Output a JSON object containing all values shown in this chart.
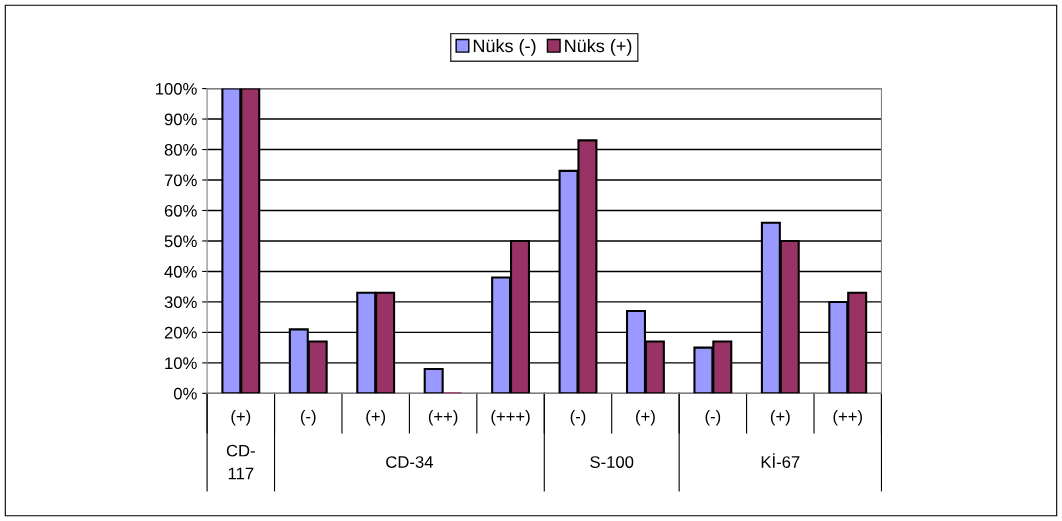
{
  "chart_data": {
    "type": "bar",
    "categories": [
      "(+)",
      "(-)",
      "(+)",
      "(++)",
      "(+++)",
      "(-)",
      "(+)",
      "(-)",
      "(+)",
      "(++)"
    ],
    "series": [
      {
        "name": "Nüks (-)",
        "color": "#9999ff",
        "values": [
          100,
          21,
          33,
          8,
          38,
          73,
          27,
          15,
          56,
          30
        ]
      },
      {
        "name": "Nüks (+)",
        "color": "#993366",
        "values": [
          100,
          17,
          33,
          0,
          50,
          83,
          17,
          17,
          50,
          33
        ]
      }
    ],
    "annotations": [
      "CD-\n117",
      "CD-34",
      "S-100",
      "Kİ-67"
    ],
    "ylim": [
      0,
      100
    ],
    "yticks": [
      {
        "value": 0,
        "label": "0%"
      },
      {
        "value": 10,
        "label": "10%"
      },
      {
        "value": 20,
        "label": "20%"
      },
      {
        "value": 30,
        "label": "30%"
      },
      {
        "value": 40,
        "label": "40%"
      },
      {
        "value": 50,
        "label": "50%"
      },
      {
        "value": 60,
        "label": "60%"
      },
      {
        "value": 70,
        "label": "70%"
      },
      {
        "value": 80,
        "label": "80%"
      },
      {
        "value": 90,
        "label": "90%"
      },
      {
        "value": 100,
        "label": "100%"
      }
    ],
    "grid": "y",
    "legend": "top"
  }
}
